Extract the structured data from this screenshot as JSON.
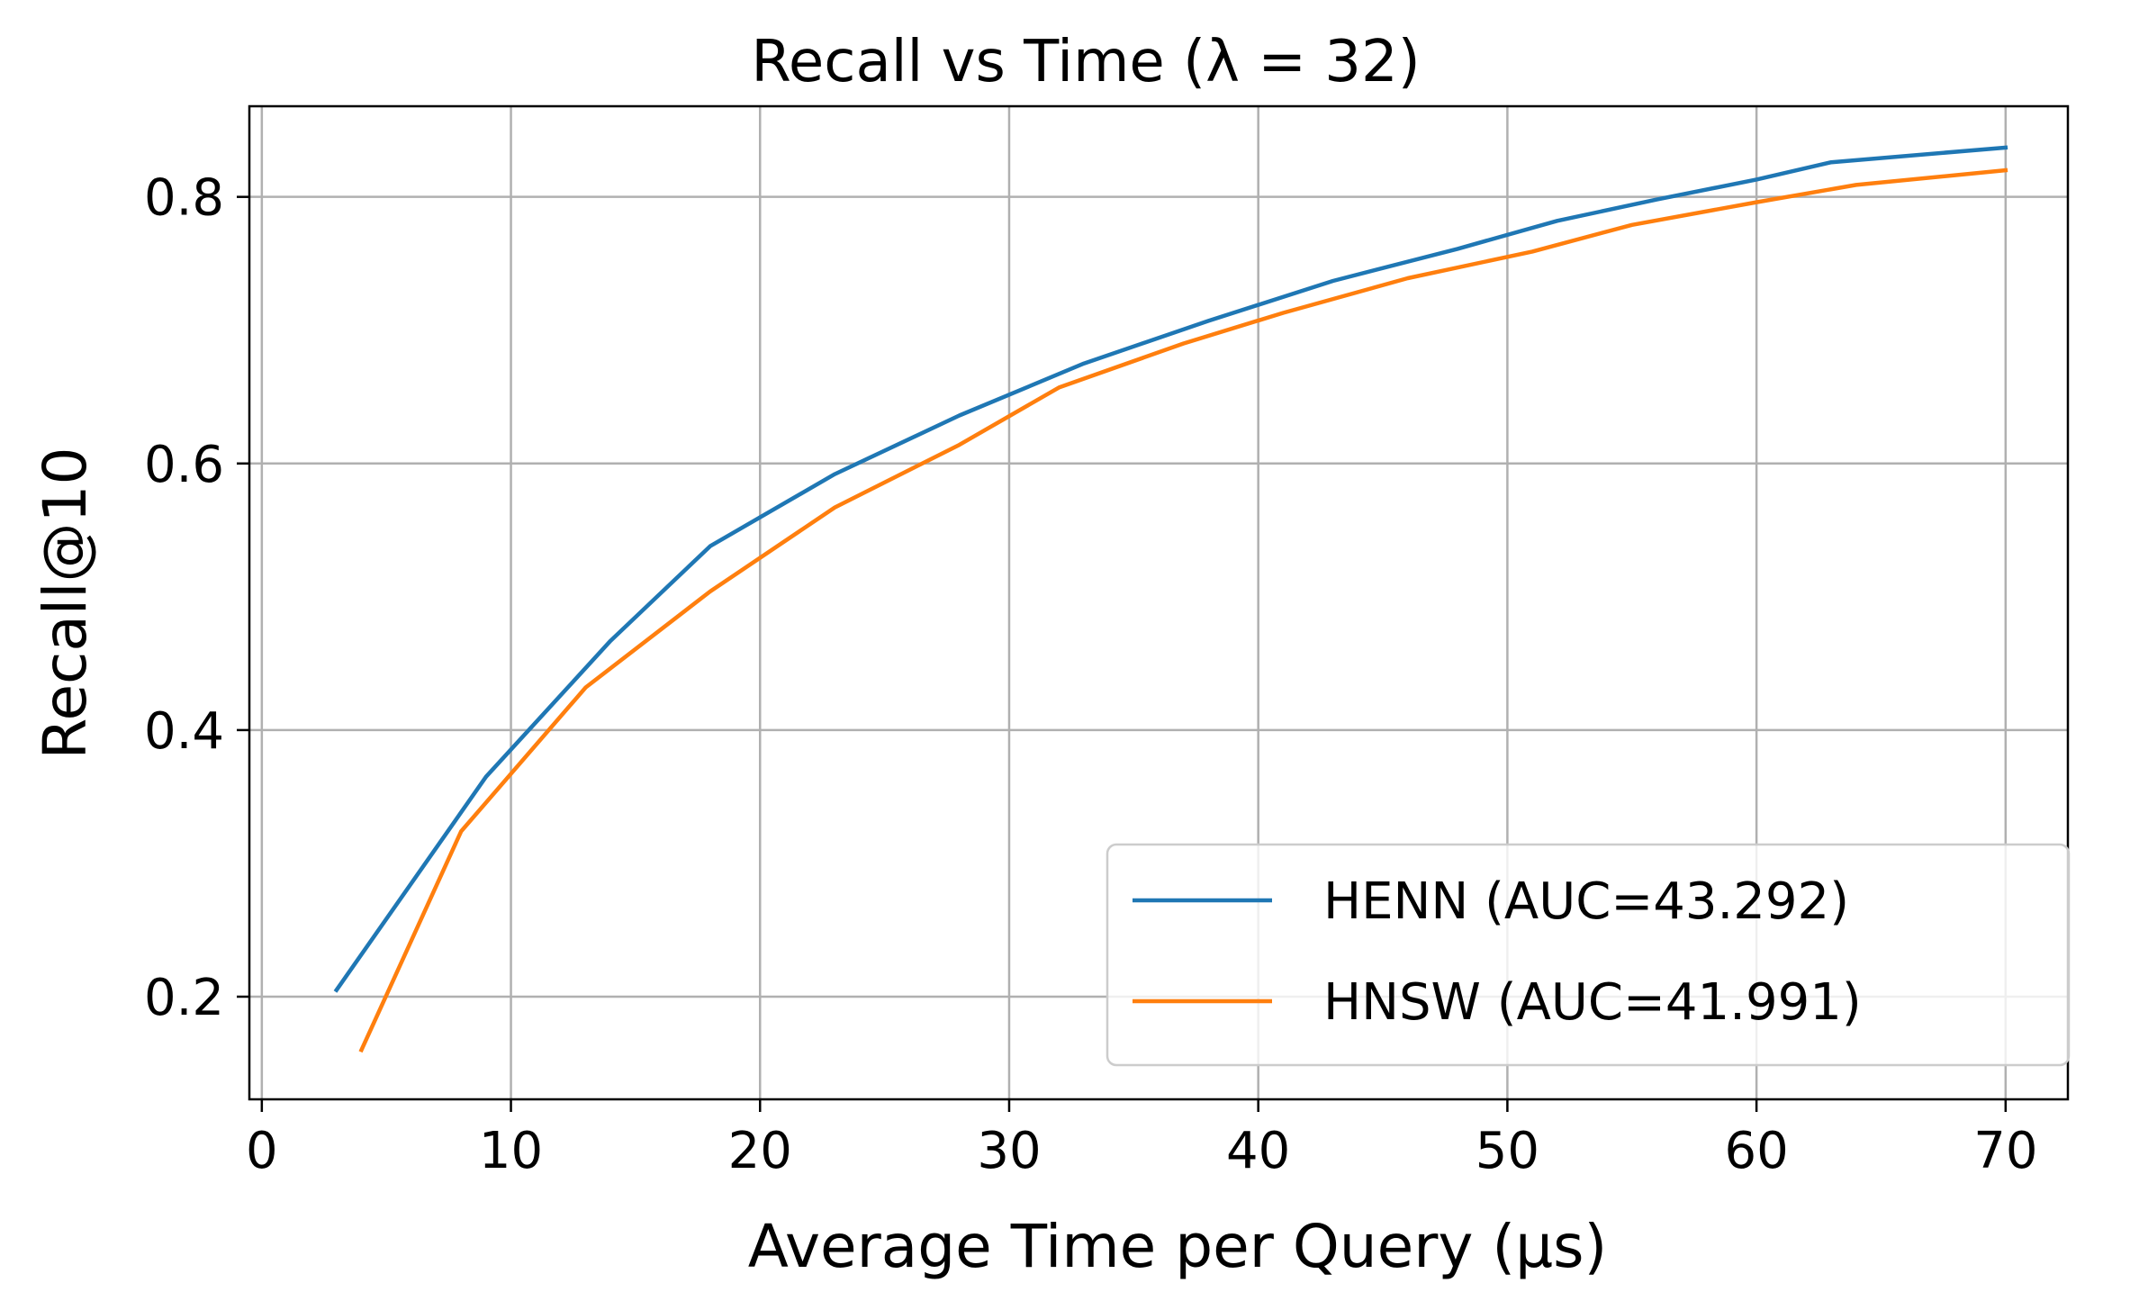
{
  "chart_data": {
    "type": "line",
    "title": "Recall vs Time (λ = 32)",
    "xlabel": "Average Time per Query (μs)",
    "ylabel": "Recall@10",
    "xlim": [
      -0.5,
      72.5
    ],
    "ylim": [
      0.123,
      0.868
    ],
    "xticks": [
      0,
      10,
      20,
      30,
      40,
      50,
      60,
      70
    ],
    "xtick_labels": [
      "0",
      "10",
      "20",
      "30",
      "40",
      "50",
      "60",
      "70"
    ],
    "yticks": [
      0.2,
      0.4,
      0.6,
      0.8
    ],
    "ytick_labels": [
      "0.2",
      "0.4",
      "0.6",
      "0.8"
    ],
    "grid": true,
    "legend_position": "lower-right",
    "series": [
      {
        "name": "HENN (AUC=43.292)",
        "color": "#1f77b4",
        "x": [
          3,
          9,
          14,
          18,
          23,
          28,
          33,
          38,
          43,
          48,
          52,
          56,
          60,
          63,
          70
        ],
        "y": [
          0.205,
          0.365,
          0.467,
          0.538,
          0.592,
          0.636,
          0.675,
          0.707,
          0.737,
          0.761,
          0.782,
          0.798,
          0.813,
          0.826,
          0.837
        ]
      },
      {
        "name": "HNSW (AUC=41.991)",
        "color": "#ff7f0e",
        "x": [
          4,
          8,
          13,
          18,
          23,
          28,
          32,
          37,
          41,
          46,
          51,
          55,
          60,
          64,
          70
        ],
        "y": [
          0.16,
          0.324,
          0.432,
          0.504,
          0.567,
          0.614,
          0.657,
          0.69,
          0.713,
          0.739,
          0.759,
          0.779,
          0.796,
          0.809,
          0.82
        ]
      }
    ]
  }
}
